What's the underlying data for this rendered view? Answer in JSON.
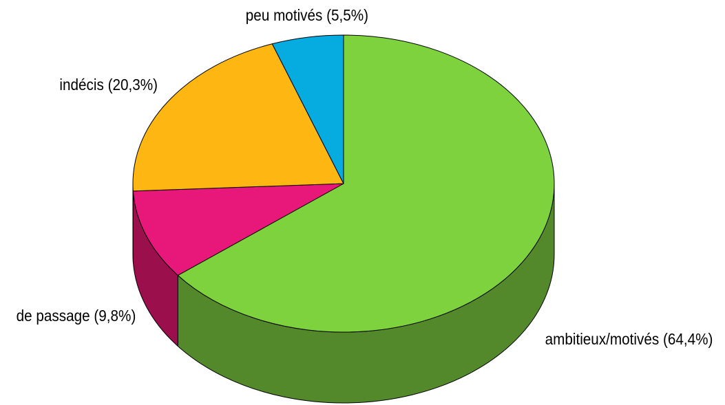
{
  "chart_data": {
    "type": "pie",
    "style": "3d",
    "start_position": "12 o'clock",
    "direction": "clockwise",
    "slices": [
      {
        "label": "ambitieux/motivés (64,4%)",
        "value": 64.4,
        "color": "#7ed23e",
        "side_color": "#54892b"
      },
      {
        "label": "de passage (9,8%)",
        "value": 9.8,
        "color": "#e8187a",
        "side_color": "#9a0f4c"
      },
      {
        "label": "indécis (20,3%)",
        "value": 20.3,
        "color": "#feb612",
        "side_color": "#b98006"
      },
      {
        "label": "peu motivés (5,5%)",
        "value": 5.5,
        "color": "#06abe0",
        "side_color": "#04709a"
      }
    ]
  }
}
